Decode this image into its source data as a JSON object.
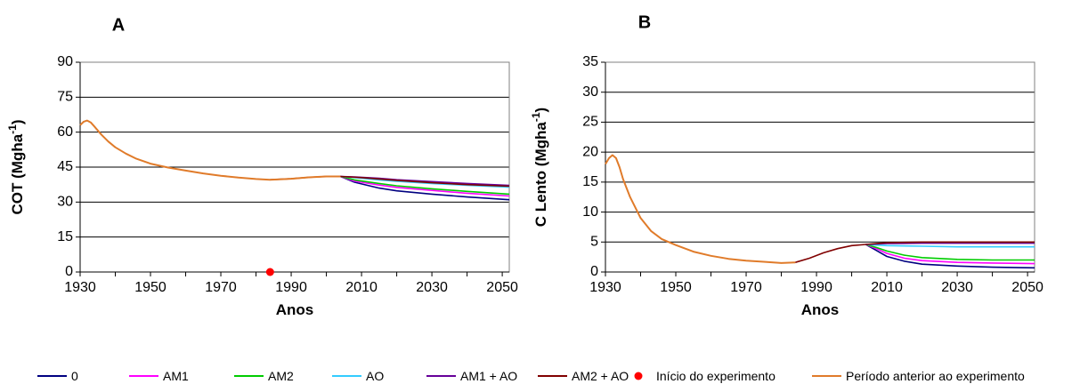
{
  "legend": {
    "entries": [
      {
        "label": "0",
        "color": "#000080",
        "kind": "line"
      },
      {
        "label": "AM1",
        "color": "#ff00ff",
        "kind": "line"
      },
      {
        "label": "AM2",
        "color": "#00cc00",
        "kind": "line"
      },
      {
        "label": "AO",
        "color": "#33ccff",
        "kind": "line"
      },
      {
        "label": "AM1 + AO",
        "color": "#660099",
        "kind": "line"
      },
      {
        "label": "AM2 + AO",
        "color": "#800000",
        "kind": "line"
      },
      {
        "label": "Início do experimento",
        "color": "#ff0000",
        "kind": "dot"
      },
      {
        "label": "Período anterior ao experimento",
        "color": "#e07b2a",
        "kind": "line"
      }
    ]
  },
  "chart_data": [
    {
      "type": "line",
      "panel_label": "A",
      "xlabel": "Anos",
      "ylabel": "COT (Mgha",
      "ylabel_sup": "-1",
      "ylabel_end": ")",
      "xlim": [
        1930,
        2052
      ],
      "ylim": [
        0,
        90
      ],
      "xticks": [
        1930,
        1950,
        1970,
        1990,
        2010,
        2030,
        2050
      ],
      "yticks": [
        0,
        15,
        30,
        45,
        60,
        75,
        90
      ],
      "grid": true,
      "pre_series": {
        "name": "Período anterior ao experimento",
        "color": "#e07b2a",
        "x": [
          1930,
          1931,
          1932,
          1933,
          1934,
          1936,
          1938,
          1940,
          1943,
          1946,
          1950,
          1955,
          1960,
          1965,
          1970,
          1975,
          1980,
          1984,
          1990,
          1995,
          2000,
          2004
        ],
        "y": [
          63,
          64.5,
          65,
          64.2,
          62.5,
          59,
          56,
          53.5,
          50.8,
          48.6,
          46.5,
          44.8,
          43.5,
          42.3,
          41.3,
          40.5,
          39.9,
          39.6,
          40,
          40.6,
          41,
          41
        ]
      },
      "marker": {
        "name": "Início do experimento",
        "x": 1984,
        "y": 0,
        "color": "#ff0000"
      },
      "series": [
        {
          "name": "0",
          "color": "#000080",
          "x": [
            2004,
            2008,
            2015,
            2020,
            2030,
            2040,
            2052
          ],
          "y": [
            41,
            38.5,
            36,
            34.8,
            33.4,
            32.2,
            31
          ]
        },
        {
          "name": "AM1",
          "color": "#ff00ff",
          "x": [
            2004,
            2008,
            2015,
            2020,
            2030,
            2040,
            2052
          ],
          "y": [
            41,
            39,
            37.3,
            36.3,
            35,
            33.8,
            32.6
          ]
        },
        {
          "name": "AM2",
          "color": "#00cc00",
          "x": [
            2004,
            2008,
            2015,
            2020,
            2030,
            2040,
            2052
          ],
          "y": [
            41,
            39.5,
            38,
            37,
            35.7,
            34.6,
            33.4
          ]
        },
        {
          "name": "AO",
          "color": "#33ccff",
          "x": [
            2004,
            2008,
            2015,
            2020,
            2030,
            2040,
            2052
          ],
          "y": [
            41,
            40.5,
            39.5,
            38.9,
            38,
            37.2,
            36.4
          ]
        },
        {
          "name": "AM1 + AO",
          "color": "#660099",
          "x": [
            2004,
            2008,
            2015,
            2020,
            2030,
            2040,
            2052
          ],
          "y": [
            41,
            40.8,
            40.2,
            39.6,
            38.8,
            38,
            37.2
          ]
        },
        {
          "name": "AM2 + AO",
          "color": "#800000",
          "x": [
            1984,
            1990,
            1995,
            2000,
            2004,
            2010,
            2020,
            2030,
            2040,
            2052
          ],
          "y": [
            39.6,
            40,
            40.6,
            41,
            41,
            40.5,
            39.3,
            38.3,
            37.5,
            36.8
          ]
        }
      ]
    },
    {
      "type": "line",
      "panel_label": "B",
      "xlabel": "Anos",
      "ylabel": "C Lento (Mgha",
      "ylabel_sup": "-1",
      "ylabel_end": ")",
      "xlim": [
        1930,
        2052
      ],
      "ylim": [
        0,
        35
      ],
      "xticks": [
        1930,
        1950,
        1970,
        1990,
        2010,
        2030,
        2050
      ],
      "yticks": [
        0,
        5,
        10,
        15,
        20,
        25,
        30,
        35
      ],
      "grid": true,
      "pre_series": {
        "name": "Período anterior ao experimento",
        "color": "#e07b2a",
        "x": [
          1930,
          1931,
          1932,
          1933,
          1934,
          1935,
          1937,
          1940,
          1943,
          1946,
          1950,
          1955,
          1960,
          1965,
          1970,
          1975,
          1980,
          1984
        ],
        "y": [
          18,
          19,
          19.5,
          19,
          17.5,
          15.5,
          12.5,
          9,
          6.8,
          5.5,
          4.5,
          3.4,
          2.7,
          2.2,
          1.9,
          1.7,
          1.5,
          1.6
        ]
      },
      "series": [
        {
          "name": "0",
          "color": "#000080",
          "x": [
            2004,
            2007,
            2010,
            2015,
            2020,
            2030,
            2040,
            2052
          ],
          "y": [
            4.6,
            3.6,
            2.6,
            1.8,
            1.3,
            1.0,
            0.8,
            0.7
          ]
        },
        {
          "name": "AM1",
          "color": "#ff00ff",
          "x": [
            2004,
            2007,
            2010,
            2015,
            2020,
            2030,
            2040,
            2052
          ],
          "y": [
            4.6,
            3.9,
            3.1,
            2.3,
            1.9,
            1.6,
            1.5,
            1.4
          ]
        },
        {
          "name": "AM2",
          "color": "#00cc00",
          "x": [
            2004,
            2007,
            2010,
            2015,
            2020,
            2030,
            2040,
            2052
          ],
          "y": [
            4.6,
            4.1,
            3.5,
            2.8,
            2.4,
            2.1,
            2.0,
            2.0
          ]
        },
        {
          "name": "AO",
          "color": "#33ccff",
          "x": [
            2004,
            2007,
            2010,
            2020,
            2030,
            2040,
            2052
          ],
          "y": [
            4.6,
            4.5,
            4.4,
            4.3,
            4.2,
            4.2,
            4.2
          ]
        },
        {
          "name": "AM1 + AO",
          "color": "#660099",
          "x": [
            2004,
            2010,
            2020,
            2030,
            2040,
            2052
          ],
          "y": [
            4.6,
            4.75,
            4.8,
            4.8,
            4.8,
            4.8
          ]
        },
        {
          "name": "AM2 + AO",
          "color": "#800000",
          "x": [
            1984,
            1988,
            1992,
            1996,
            2000,
            2004,
            2010,
            2020,
            2030,
            2040,
            2052
          ],
          "y": [
            1.6,
            2.3,
            3.2,
            3.9,
            4.4,
            4.6,
            4.9,
            5.0,
            5.0,
            5.0,
            5.0
          ]
        }
      ]
    }
  ]
}
